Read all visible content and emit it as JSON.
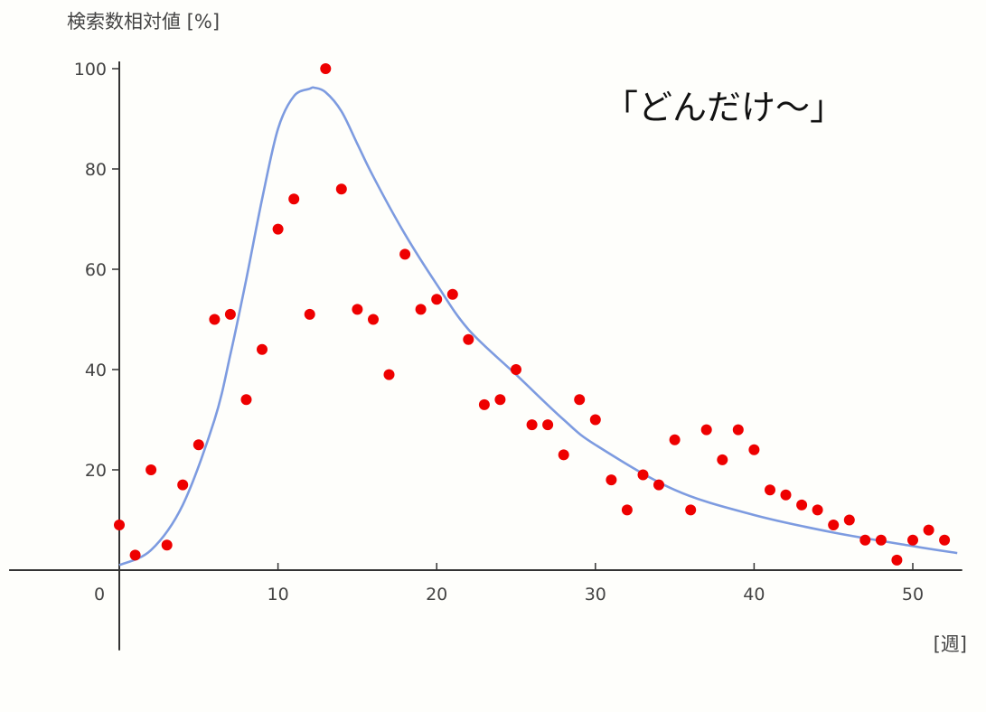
{
  "chart_data": {
    "type": "scatter",
    "ylabel": "検索数相対値 [%]",
    "xlabel": "[週]",
    "annotation": "「どんだけ～」",
    "xlim": [
      -7,
      53
    ],
    "ylim": [
      -16,
      100
    ],
    "x_ticks": [
      0,
      10,
      20,
      30,
      40,
      50
    ],
    "y_ticks": [
      20,
      40,
      60,
      80,
      100
    ],
    "grid": false,
    "colors": {
      "points": "#ee0000",
      "curve": "#7d9be0",
      "axis": "#333333"
    },
    "series": [
      {
        "type": "scatter",
        "x": [
          0,
          1,
          2,
          3,
          4,
          5,
          6,
          7,
          8,
          9,
          10,
          11,
          12,
          13,
          14,
          15,
          16,
          17,
          18,
          19,
          20,
          21,
          22,
          23,
          24,
          25,
          26,
          27,
          28,
          29,
          30,
          31,
          32,
          33,
          34,
          35,
          36,
          37,
          38,
          39,
          40,
          41,
          42,
          43,
          44,
          45,
          46,
          47,
          48,
          49,
          50,
          51,
          52
        ],
        "y": [
          9,
          3,
          20,
          5,
          17,
          25,
          50,
          51,
          34,
          44,
          68,
          74,
          51,
          100,
          76,
          52,
          50,
          39,
          63,
          52,
          54,
          55,
          46,
          33,
          34,
          40,
          29,
          29,
          23,
          34,
          30,
          18,
          12,
          19,
          17,
          26,
          12,
          28,
          22,
          28,
          24,
          16,
          15,
          13,
          12,
          9,
          10,
          6,
          6,
          2,
          6,
          8,
          6
        ]
      },
      {
        "type": "line",
        "x": [
          0,
          2,
          4,
          6,
          7,
          8,
          9,
          10,
          11,
          12,
          12.3,
          13,
          14,
          15,
          16,
          18,
          20,
          22,
          25,
          28,
          30,
          35,
          40,
          45,
          50,
          52.8
        ],
        "y": [
          1,
          4,
          13,
          30,
          43,
          58,
          74,
          88,
          94.5,
          96,
          96.2,
          95.3,
          91.5,
          85,
          78.5,
          67,
          57,
          48,
          39,
          30,
          25,
          16,
          11,
          7.5,
          4.8,
          3.4
        ]
      }
    ]
  }
}
